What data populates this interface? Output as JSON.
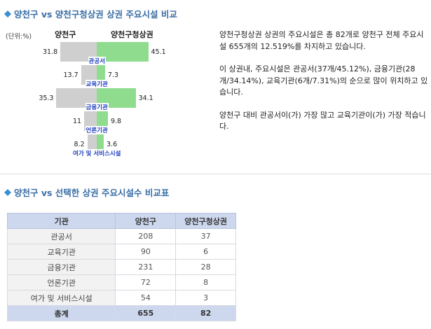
{
  "section1": {
    "title": "양천구 vs 양천구청상권 상권 주요시설 비교",
    "icon": "diamond-icon"
  },
  "unit_label": "(단위:%)",
  "legend": {
    "left": "양천구",
    "right": "양천구청상권"
  },
  "chart_data": {
    "type": "bar",
    "categories": [
      "관공서",
      "교육기관",
      "금융기관",
      "언론기관",
      "여가 및 서비스시설"
    ],
    "series": [
      {
        "name": "양천구",
        "values": [
          31.8,
          13.7,
          35.3,
          11,
          8.2
        ]
      },
      {
        "name": "양천구청상권",
        "values": [
          45.1,
          7.3,
          34.1,
          9.8,
          3.6
        ]
      }
    ],
    "value_labels_left": [
      "31.8",
      "13.7",
      "35.3",
      "11",
      "8.2"
    ],
    "value_labels_right": [
      "45.1",
      "7.3",
      "34.1",
      "9.8",
      "3.6"
    ],
    "colors": {
      "left": "#cfcfcf",
      "right": "#8fdc8f",
      "label": "#2040c0"
    }
  },
  "description": [
    "양천구청상권 상권의 주요시설은 총 82개로 양천구 전체 주요시설 655개의 12.519%를 차지하고 있습니다.",
    "이 상권내, 주요시설은 관공서(37개/45.12%), 금융기관(28개/34.14%), 교육기관(6개/7.31%)의 순으로 많이 위치하고 있습니다.",
    "양천구 대비 관공서이(가) 가장 많고 교육기관이(가) 가장 적습니다."
  ],
  "section2": {
    "title": "양천구 vs 선택한 상권 주요시설수 비교표",
    "icon": "diamond-icon"
  },
  "table": {
    "headers": [
      "기관",
      "양천구",
      "양천구청상권"
    ],
    "rows": [
      [
        "관공서",
        "208",
        "37"
      ],
      [
        "교육기관",
        "90",
        "6"
      ],
      [
        "금융기관",
        "231",
        "28"
      ],
      [
        "언론기관",
        "72",
        "8"
      ],
      [
        "여가 및 서비스시설",
        "54",
        "3"
      ]
    ],
    "total": [
      "총계",
      "655",
      "82"
    ]
  },
  "colors": {
    "title": "#3a6ea5",
    "table_header": "#cdd8ee"
  }
}
